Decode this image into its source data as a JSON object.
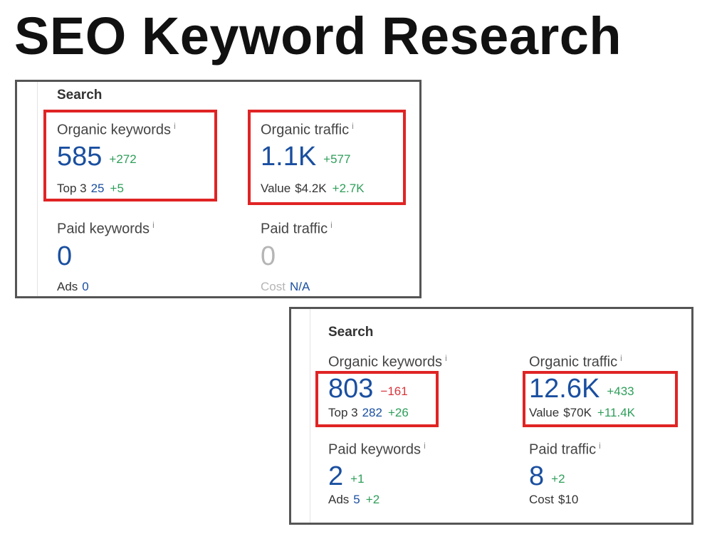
{
  "title": "SEO Keyword Research",
  "panel_1": {
    "heading": "Search",
    "info_glyph": "i",
    "organic_keywords": {
      "label": "Organic keywords",
      "value": "585",
      "delta": "+272",
      "sub_label": "Top 3",
      "sub_value": "25",
      "sub_delta": "+5"
    },
    "organic_traffic": {
      "label": "Organic traffic",
      "value": "1.1K",
      "delta": "+577",
      "sub_label": "Value",
      "sub_value": "$4.2K",
      "sub_delta": "+2.7K"
    },
    "paid_keywords": {
      "label": "Paid keywords",
      "value": "0",
      "sub_label": "Ads",
      "sub_value": "0"
    },
    "paid_traffic": {
      "label": "Paid traffic",
      "value": "0",
      "sub_label": "Cost",
      "sub_value": "N/A"
    }
  },
  "panel_2": {
    "heading": "Search",
    "info_glyph": "i",
    "organic_keywords": {
      "label": "Organic keywords",
      "value": "803",
      "delta": "−161",
      "sub_label": "Top 3",
      "sub_value": "282",
      "sub_delta": "+26"
    },
    "organic_traffic": {
      "label": "Organic traffic",
      "value": "12.6K",
      "delta": "+433",
      "sub_label": "Value",
      "sub_value": "$70K",
      "sub_delta": "+11.4K"
    },
    "paid_keywords": {
      "label": "Paid keywords",
      "value": "2",
      "delta": "+1",
      "sub_label": "Ads",
      "sub_value": "5",
      "sub_delta": "+2"
    },
    "paid_traffic": {
      "label": "Paid traffic",
      "value": "8",
      "delta": "+2",
      "sub_label": "Cost",
      "sub_value": "$10"
    }
  },
  "colors": {
    "value_blue": "#1a4fa0",
    "positive_green": "#2e9e5a",
    "negative_red": "#d9353a",
    "highlight_red": "#e02424",
    "muted_gray": "#b5b5b5"
  },
  "icons": [
    "info-icon"
  ]
}
